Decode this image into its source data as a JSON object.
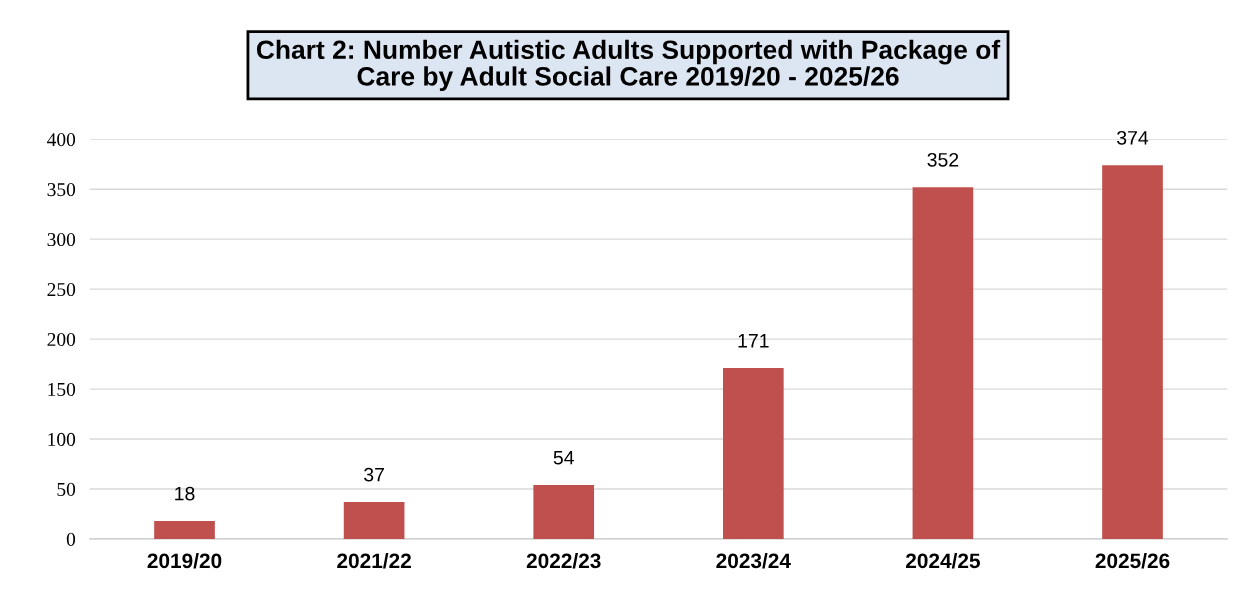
{
  "chart_data": {
    "type": "bar",
    "title": "Chart 2: Number Autistic Adults Supported with Package of\nCare by Adult Social Care 2019/20 - 2025/26",
    "categories": [
      "2019/20",
      "2021/22",
      "2022/23",
      "2023/24",
      "2024/25",
      "2025/26"
    ],
    "values": [
      18,
      37,
      54,
      171,
      352,
      374
    ],
    "color": "#c0504d",
    "ylim": [
      0,
      400
    ],
    "yticks": [
      0,
      50,
      100,
      150,
      200,
      250,
      300,
      350,
      400
    ],
    "grid": "y",
    "data_labels": true
  }
}
